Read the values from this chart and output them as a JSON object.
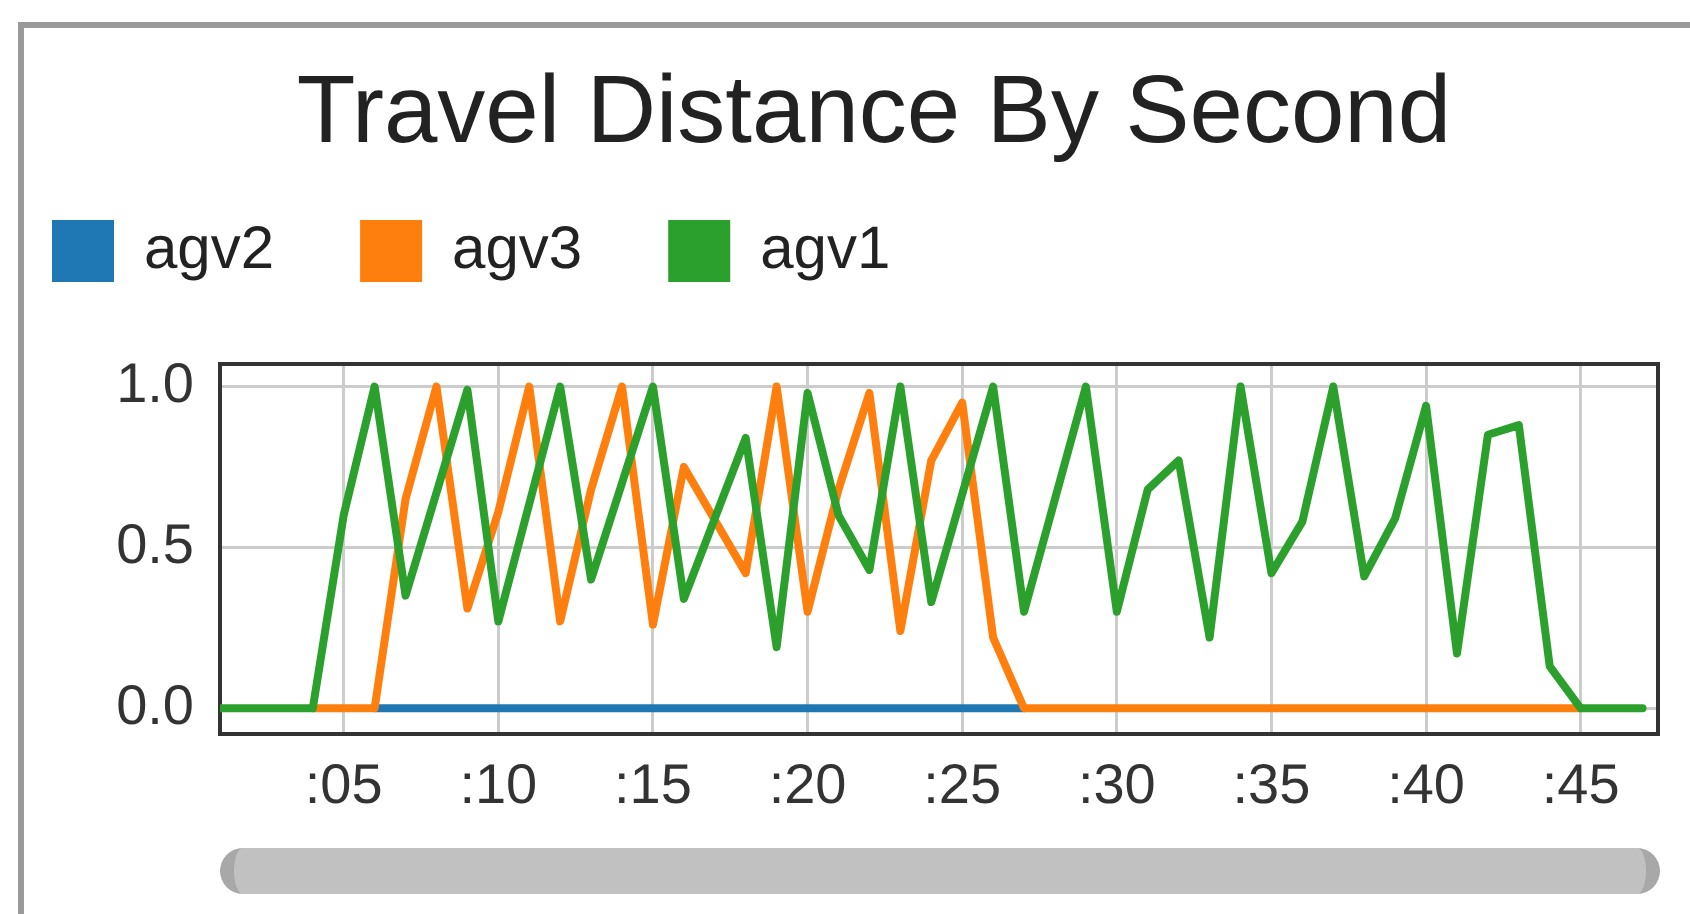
{
  "chart_data": {
    "type": "line",
    "title": "Travel Distance By Second",
    "series": [
      {
        "name": "agv2",
        "color": "#1f77b4",
        "x": [
          6,
          27
        ],
        "values": [
          0,
          0
        ]
      },
      {
        "name": "agv3",
        "color": "#ff7f0e",
        "x": [
          4,
          6,
          7,
          8,
          9,
          10,
          11,
          12,
          13,
          14,
          15,
          16,
          18,
          19,
          20,
          21,
          22,
          23,
          24,
          25,
          26,
          27,
          45
        ],
        "values": [
          0,
          0,
          0.65,
          1.0,
          0.31,
          0.61,
          1.0,
          0.27,
          0.68,
          1.0,
          0.26,
          0.75,
          0.42,
          1.0,
          0.3,
          0.68,
          0.98,
          0.24,
          0.77,
          0.95,
          0.22,
          0,
          0
        ]
      },
      {
        "name": "agv1",
        "color": "#2ca02c",
        "x": [
          1,
          4,
          5,
          6,
          7,
          9,
          10,
          12,
          13,
          15,
          16,
          18,
          19,
          20,
          21,
          22,
          23,
          24,
          26,
          27,
          29,
          30,
          31,
          32,
          33,
          34,
          35,
          36,
          37,
          38,
          39,
          40,
          41,
          42,
          43,
          44,
          45,
          47
        ],
        "values": [
          0,
          0,
          0.6,
          1.0,
          0.35,
          0.99,
          0.27,
          1.0,
          0.4,
          1.0,
          0.34,
          0.84,
          0.19,
          0.98,
          0.6,
          0.43,
          1.0,
          0.33,
          1.0,
          0.3,
          1.0,
          0.3,
          0.68,
          0.77,
          0.22,
          1.0,
          0.42,
          0.58,
          1.0,
          0.41,
          0.59,
          0.94,
          0.17,
          0.85,
          0.88,
          0.13,
          0,
          0
        ]
      }
    ],
    "xlim": [
      1,
      47.5
    ],
    "xticks": [
      {
        "value": 5,
        "label": ":05"
      },
      {
        "value": 10,
        "label": ":10"
      },
      {
        "value": 15,
        "label": ":15"
      },
      {
        "value": 20,
        "label": ":20"
      },
      {
        "value": 25,
        "label": ":25"
      },
      {
        "value": 30,
        "label": ":30"
      },
      {
        "value": 35,
        "label": ":35"
      },
      {
        "value": 40,
        "label": ":40"
      },
      {
        "value": 45,
        "label": ":45"
      }
    ],
    "ylim": [
      -0.08,
      1.07
    ],
    "yticks": [
      {
        "value": 0,
        "label": "0.0"
      },
      0.5,
      {
        "value": 1,
        "label": "1.0"
      }
    ],
    "grid": true,
    "legend": "top left",
    "marker": "none",
    "line_style": "solid"
  }
}
